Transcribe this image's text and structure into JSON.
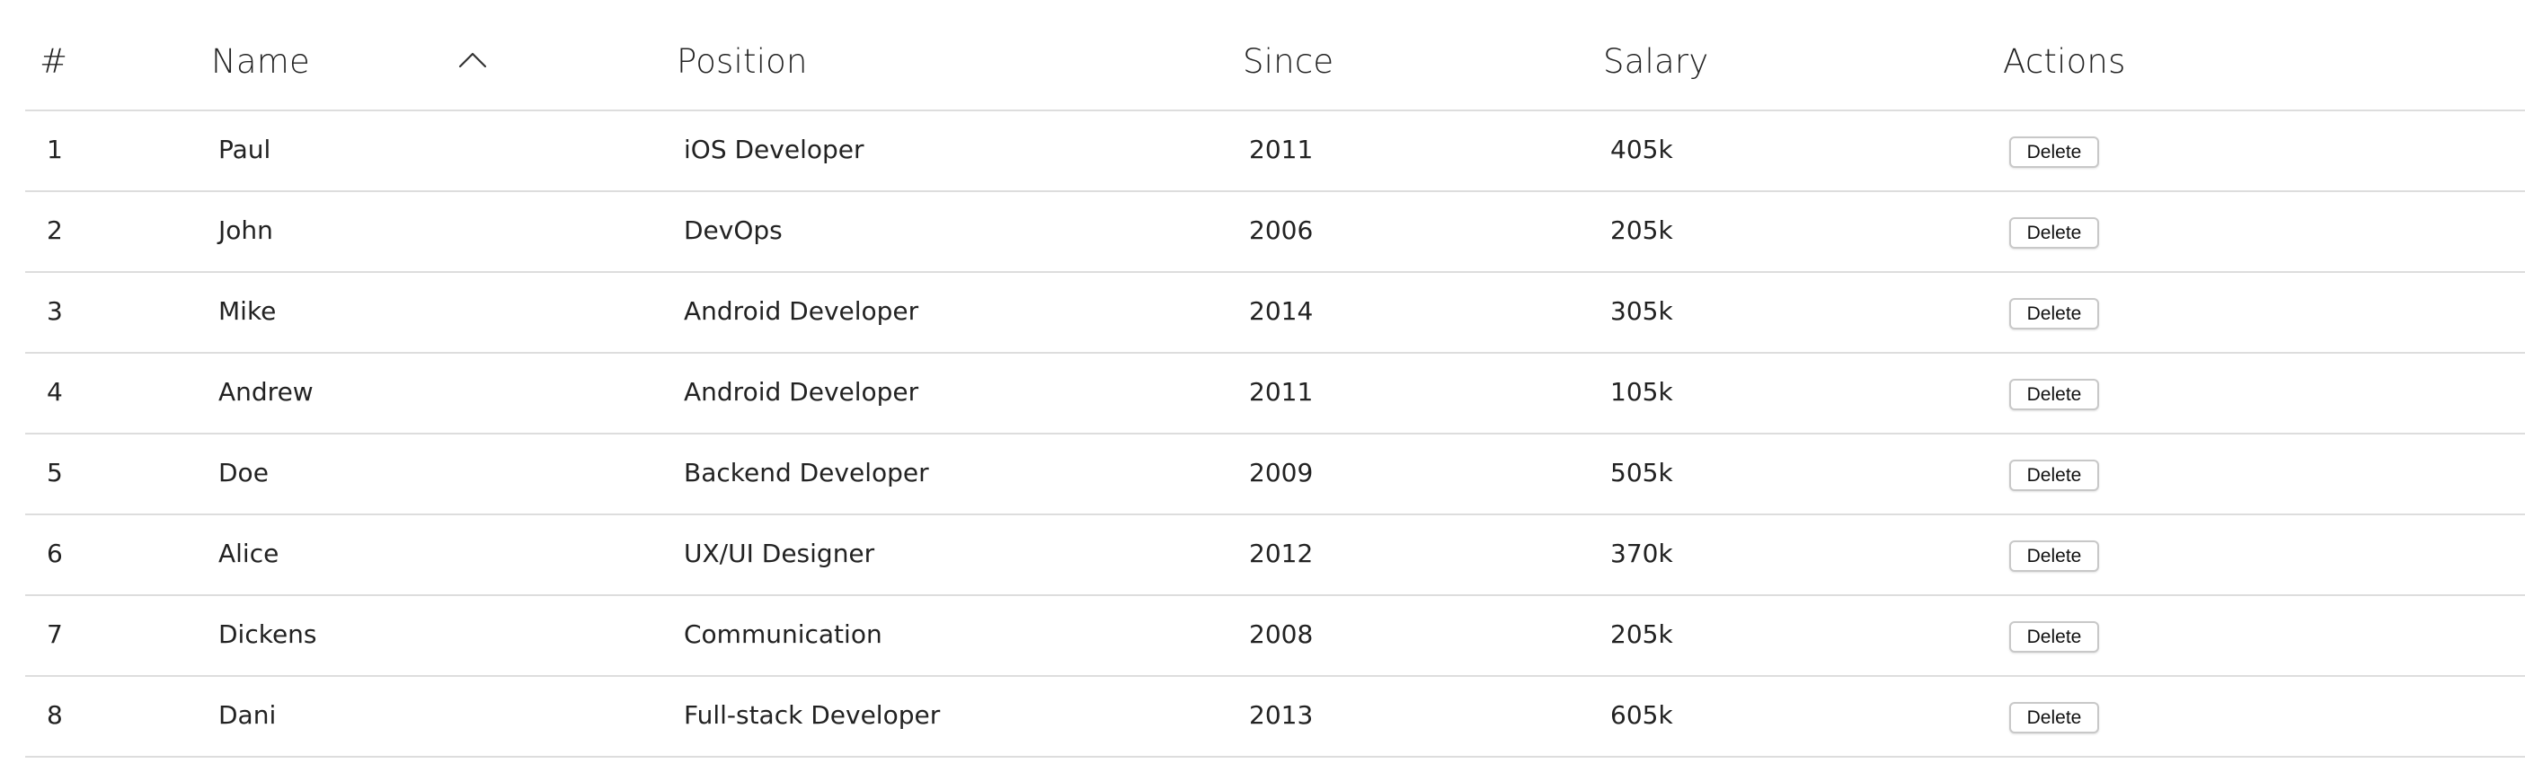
{
  "table": {
    "headers": {
      "num": "#",
      "name": "Name",
      "position": "Position",
      "since": "Since",
      "salary": "Salary",
      "actions": "Actions"
    },
    "sort": {
      "column": "name",
      "direction": "ascending",
      "icon": "chevron-up-icon"
    },
    "delete_label": "Delete",
    "rows": [
      {
        "num": "1",
        "name": "Paul",
        "position": "iOS Developer",
        "since": "2011",
        "salary": "405k"
      },
      {
        "num": "2",
        "name": "John",
        "position": "DevOps",
        "since": "2006",
        "salary": "205k"
      },
      {
        "num": "3",
        "name": "Mike",
        "position": "Android Developer",
        "since": "2014",
        "salary": "305k"
      },
      {
        "num": "4",
        "name": "Andrew",
        "position": "Android Developer",
        "since": "2011",
        "salary": "105k"
      },
      {
        "num": "5",
        "name": "Doe",
        "position": "Backend Developer",
        "since": "2009",
        "salary": "505k"
      },
      {
        "num": "6",
        "name": "Alice",
        "position": "UX/UI Designer",
        "since": "2012",
        "salary": "370k"
      },
      {
        "num": "7",
        "name": "Dickens",
        "position": "Communication",
        "since": "2008",
        "salary": "205k"
      },
      {
        "num": "8",
        "name": "Dani",
        "position": "Full-stack Developer",
        "since": "2013",
        "salary": "605k"
      }
    ]
  },
  "colors": {
    "text": "#222222",
    "divider": "#dddddd",
    "button_border": "#c8c8c8",
    "background": "#ffffff"
  }
}
